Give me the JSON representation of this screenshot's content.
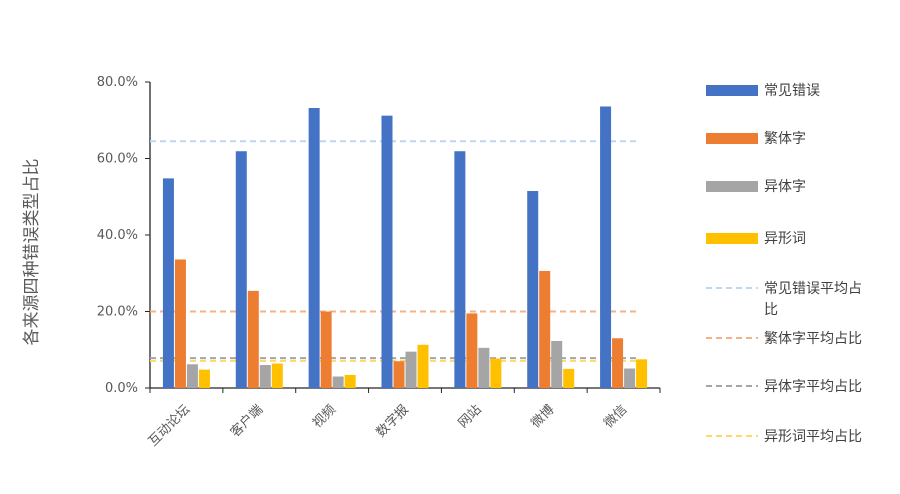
{
  "chart_data": {
    "type": "bar",
    "title": "",
    "xlabel": "",
    "ylabel": "各来源四种错误类型占比",
    "categories": [
      "互动论坛",
      "客户端",
      "视频",
      "数字报",
      "网站",
      "微博",
      "微信"
    ],
    "ylim": [
      0,
      80
    ],
    "yticks": [
      "0.0%",
      "20.0%",
      "40.0%",
      "60.0%",
      "80.0%"
    ],
    "series": [
      {
        "name": "常见错误",
        "color": "#4472C4",
        "values": [
          54.8,
          61.9,
          73.2,
          71.2,
          61.9,
          51.5,
          73.6
        ]
      },
      {
        "name": "繁体字",
        "color": "#ED7D31",
        "values": [
          33.6,
          25.4,
          20.0,
          7.0,
          19.5,
          30.6,
          13.0
        ]
      },
      {
        "name": "异体字",
        "color": "#A5A5A5",
        "values": [
          6.2,
          6.0,
          3.0,
          9.5,
          10.5,
          12.3,
          5.1
        ]
      },
      {
        "name": "异形词",
        "color": "#FFC000",
        "values": [
          4.8,
          6.4,
          3.4,
          11.3,
          7.7,
          5.0,
          7.5
        ]
      }
    ],
    "averages": [
      {
        "name": "常见错误平均占比",
        "color": "#BDD7EE",
        "value": 64.5
      },
      {
        "name": "繁体字平均占比",
        "color": "#F4B183",
        "value": 20.0
      },
      {
        "name": "异体字平均占比",
        "color": "#A5A5A5",
        "value": 7.8
      },
      {
        "name": "异形词平均占比",
        "color": "#FFD966",
        "value": 7.1
      }
    ],
    "grid": false,
    "legend": "right"
  }
}
